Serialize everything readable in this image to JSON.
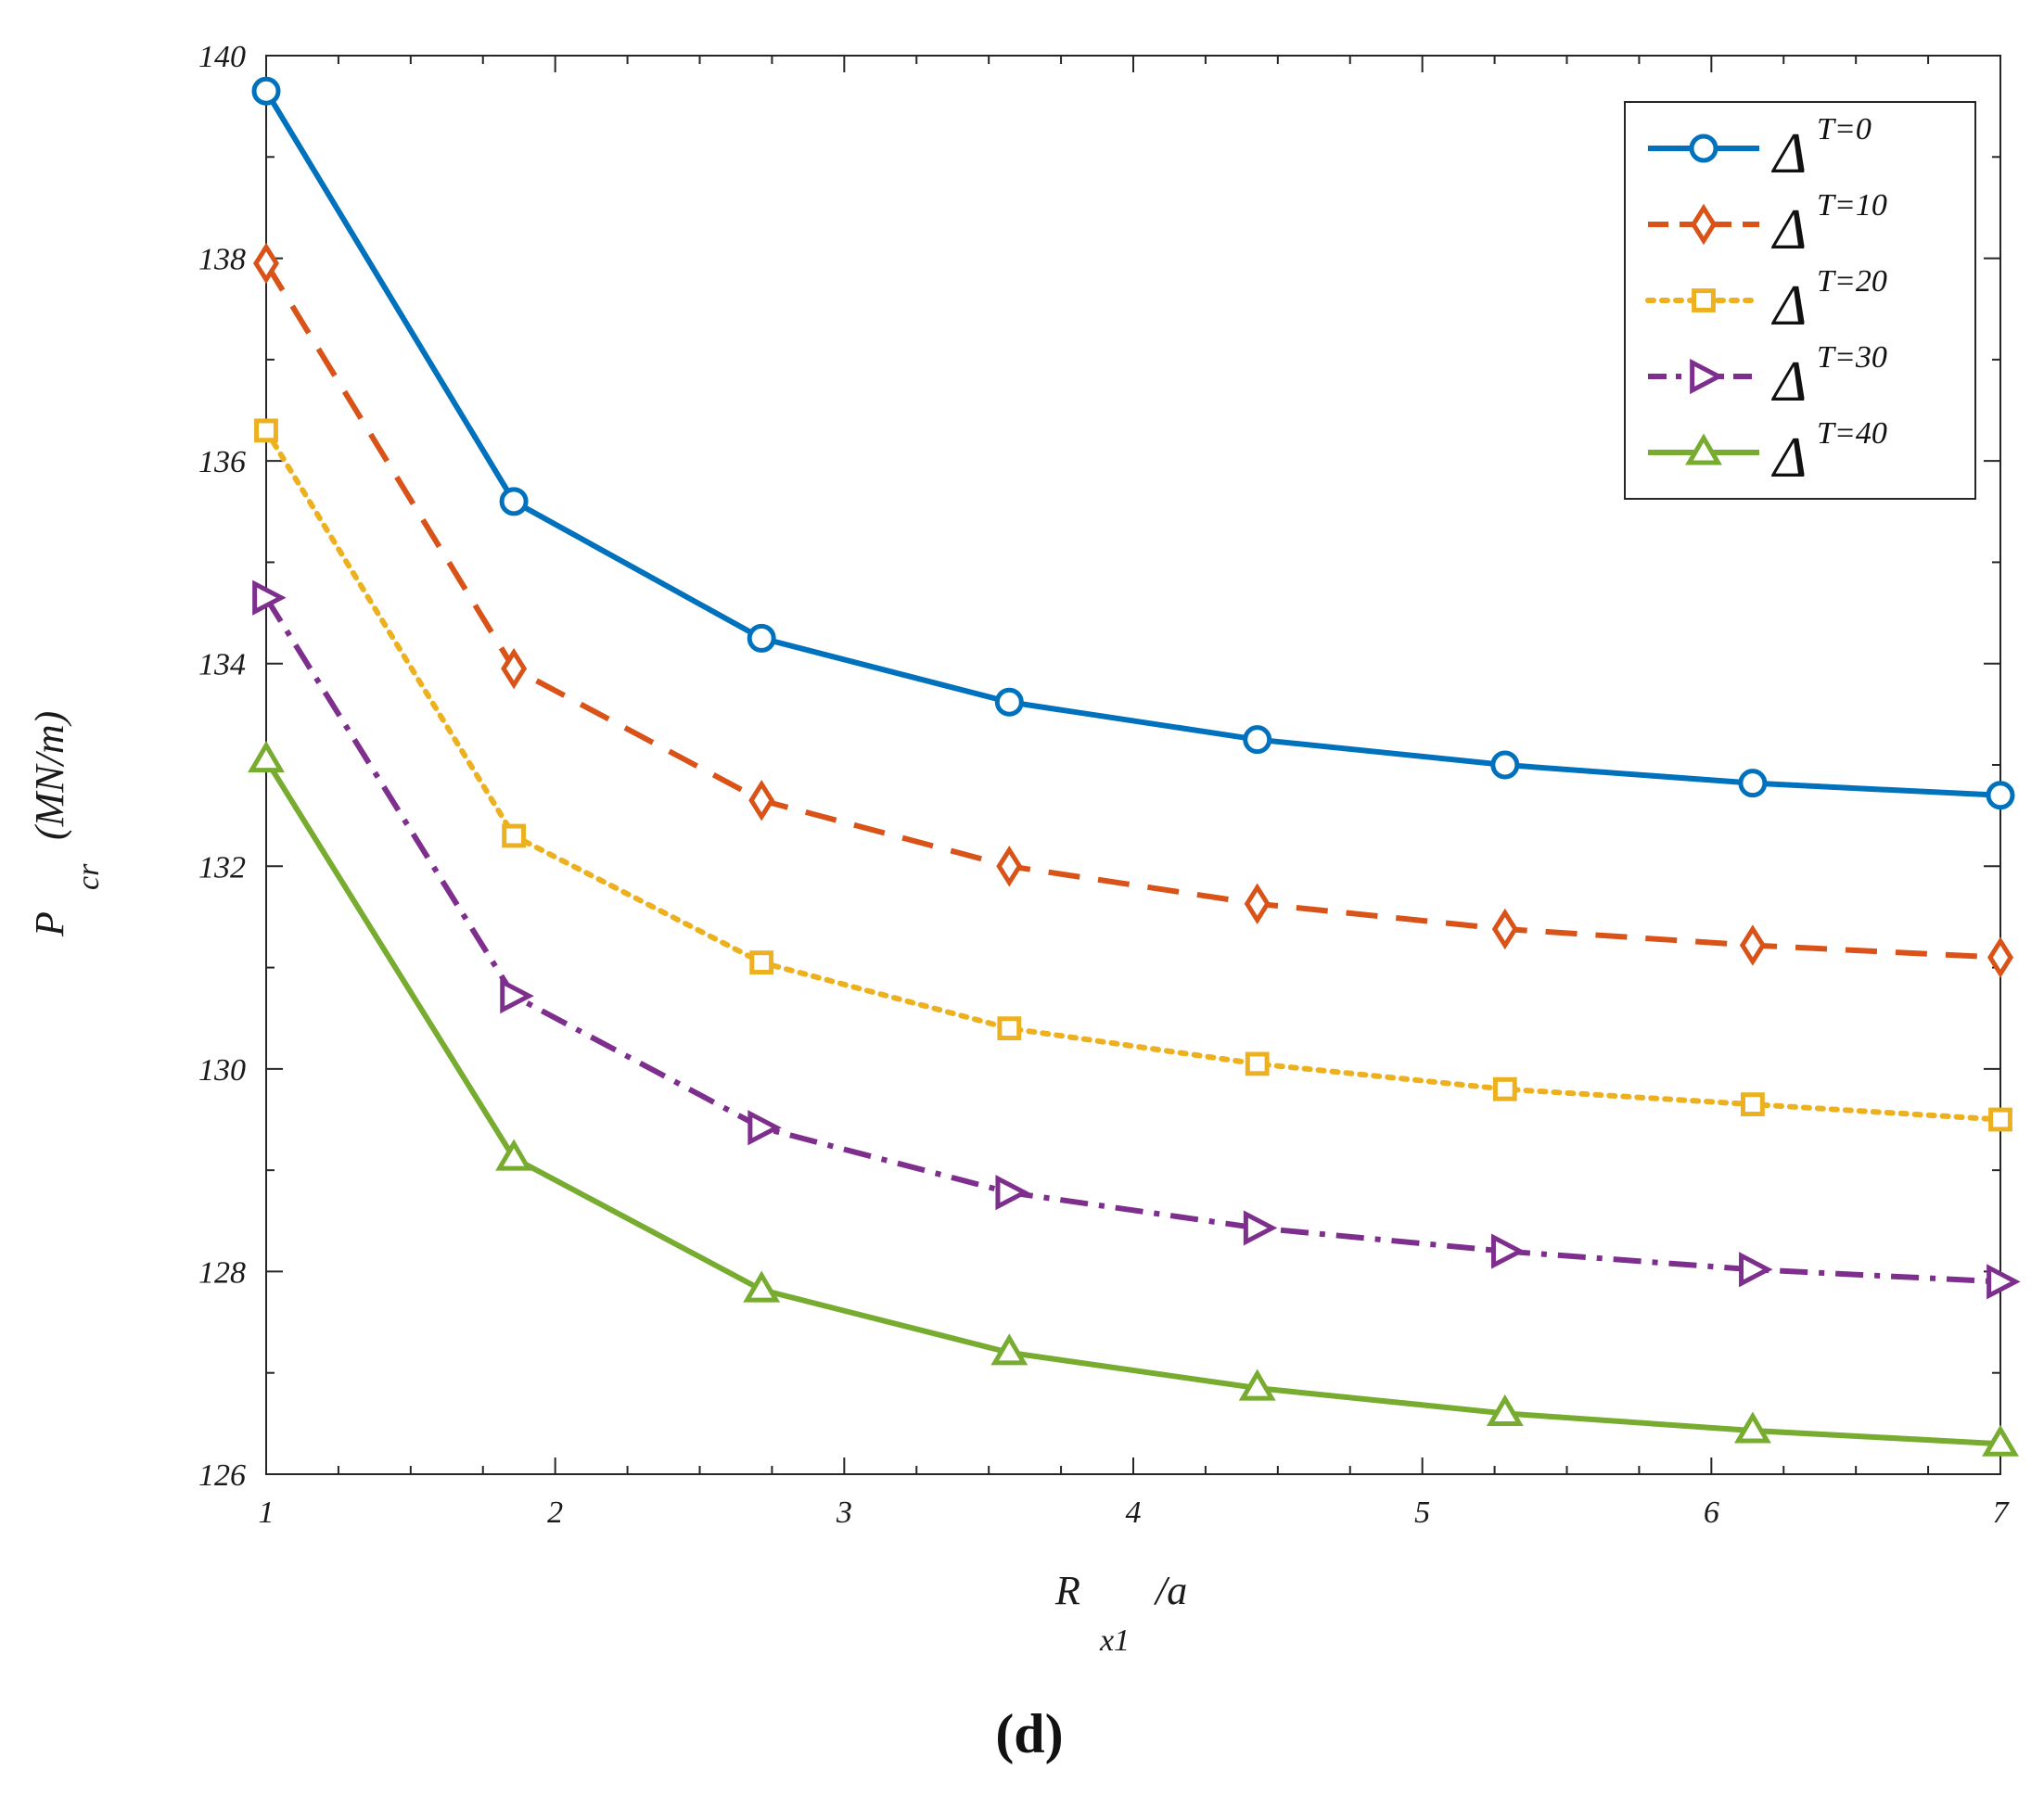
{
  "chart_data": {
    "type": "line",
    "title": "",
    "panel_label": "(d)",
    "xlabel": {
      "main": "R",
      "sub": "x1",
      "suffix": "/a"
    },
    "ylabel": {
      "main": "P",
      "sub": "cr",
      "suffix": "(MN/m)"
    },
    "xlim": [
      1,
      7
    ],
    "ylim": [
      126,
      140
    ],
    "x_ticks": [
      1,
      2,
      3,
      4,
      5,
      6,
      7
    ],
    "y_ticks": [
      126,
      128,
      130,
      132,
      134,
      136,
      138,
      140
    ],
    "x_tick_labels": [
      "1",
      "2",
      "3",
      "4",
      "5",
      "6",
      "7"
    ],
    "y_tick_labels": [
      "126",
      "128",
      "130",
      "132",
      "134",
      "136",
      "138",
      "140"
    ],
    "x": [
      1,
      1.857,
      2.714,
      3.571,
      4.429,
      5.286,
      6.143,
      7
    ],
    "grid": false,
    "legend_position": "top-right",
    "series": [
      {
        "name": "Δ",
        "sup": "T=0",
        "color": "#0072BD",
        "dash": "solid",
        "marker": "circle",
        "values": [
          139.65,
          135.6,
          134.25,
          133.62,
          133.25,
          133.0,
          132.82,
          132.7
        ]
      },
      {
        "name": "Δ",
        "sup": "T=10",
        "color": "#D95319",
        "dash": "dashed",
        "marker": "diamond",
        "values": [
          137.95,
          133.95,
          132.65,
          132.0,
          131.63,
          131.38,
          131.22,
          131.1
        ]
      },
      {
        "name": "Δ",
        "sup": "T=20",
        "color": "#EDB120",
        "dash": "dotted",
        "marker": "square",
        "values": [
          136.3,
          132.3,
          131.05,
          130.4,
          130.05,
          129.8,
          129.65,
          129.5
        ]
      },
      {
        "name": "Δ",
        "sup": "T=30",
        "color": "#7E2F8E",
        "dash": "dashdot",
        "marker": "triangle-right",
        "values": [
          134.65,
          130.72,
          129.42,
          128.78,
          128.43,
          128.2,
          128.02,
          127.9
        ]
      },
      {
        "name": "Δ",
        "sup": "T=40",
        "color": "#77AC30",
        "dash": "solid",
        "marker": "triangle-up",
        "values": [
          133.05,
          129.12,
          127.82,
          127.2,
          126.85,
          126.6,
          126.43,
          126.3
        ]
      }
    ]
  }
}
